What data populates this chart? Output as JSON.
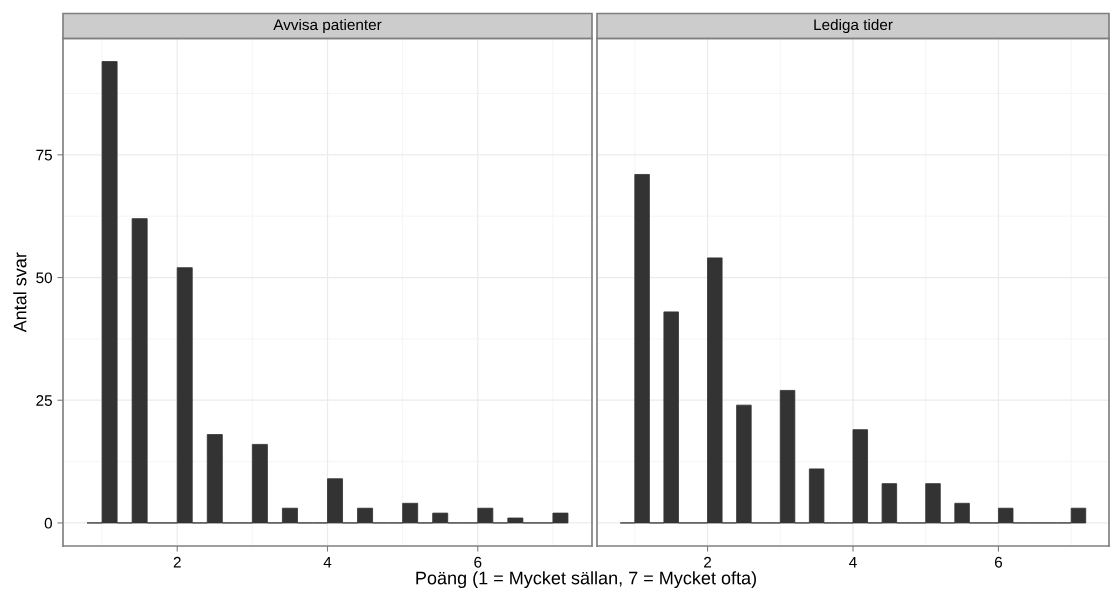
{
  "chart_data": [
    {
      "type": "histogram",
      "title": "Avvisa patienter",
      "ylabel": "Antal svar",
      "xlabel": "Poäng (1 = Mycket sällan, 7 = Mycket ofta)",
      "bins": [
        0.8,
        1.0,
        1.2,
        1.4,
        1.6,
        1.8,
        2.0,
        2.2,
        2.4,
        2.6,
        2.8,
        3.0,
        3.2,
        3.4,
        3.6,
        3.8,
        4.0,
        4.2,
        4.4,
        4.6,
        4.8,
        5.0,
        5.2,
        5.4,
        5.6,
        5.8,
        6.0,
        6.2,
        6.4,
        6.6,
        6.8,
        7.0,
        7.2
      ],
      "values": [
        0,
        94,
        0,
        62,
        0,
        0,
        52,
        0,
        18,
        0,
        0,
        16,
        0,
        3,
        0,
        0,
        9,
        0,
        3,
        0,
        0,
        4,
        0,
        2,
        0,
        0,
        3,
        0,
        1,
        0,
        0,
        2
      ],
      "color": "#333333",
      "xlim": [
        0.48,
        7.52
      ],
      "xticks": [
        2,
        4,
        6
      ],
      "ylim": [
        -4.7,
        98.7
      ],
      "yticks": [
        0,
        25,
        50,
        75
      ],
      "grid": true
    },
    {
      "type": "histogram",
      "title": "Lediga tider",
      "bins": [
        0.8,
        1.0,
        1.2,
        1.4,
        1.6,
        1.8,
        2.0,
        2.2,
        2.4,
        2.6,
        2.8,
        3.0,
        3.2,
        3.4,
        3.6,
        3.8,
        4.0,
        4.2,
        4.4,
        4.6,
        4.8,
        5.0,
        5.2,
        5.4,
        5.6,
        5.8,
        6.0,
        6.2,
        6.4,
        6.6,
        6.8,
        7.0,
        7.2
      ],
      "values": [
        0,
        71,
        0,
        43,
        0,
        0,
        54,
        0,
        24,
        0,
        0,
        27,
        0,
        11,
        0,
        0,
        19,
        0,
        8,
        0,
        0,
        8,
        0,
        4,
        0,
        0,
        3,
        0,
        0,
        0,
        0,
        3
      ],
      "color": "#333333",
      "xlim": [
        0.48,
        7.52
      ],
      "xticks": [
        2,
        4,
        6
      ],
      "ylim": [
        -4.7,
        98.7
      ],
      "yticks": [
        0,
        25,
        50,
        75
      ],
      "grid": true,
      "tick_labels": "x"
    }
  ]
}
